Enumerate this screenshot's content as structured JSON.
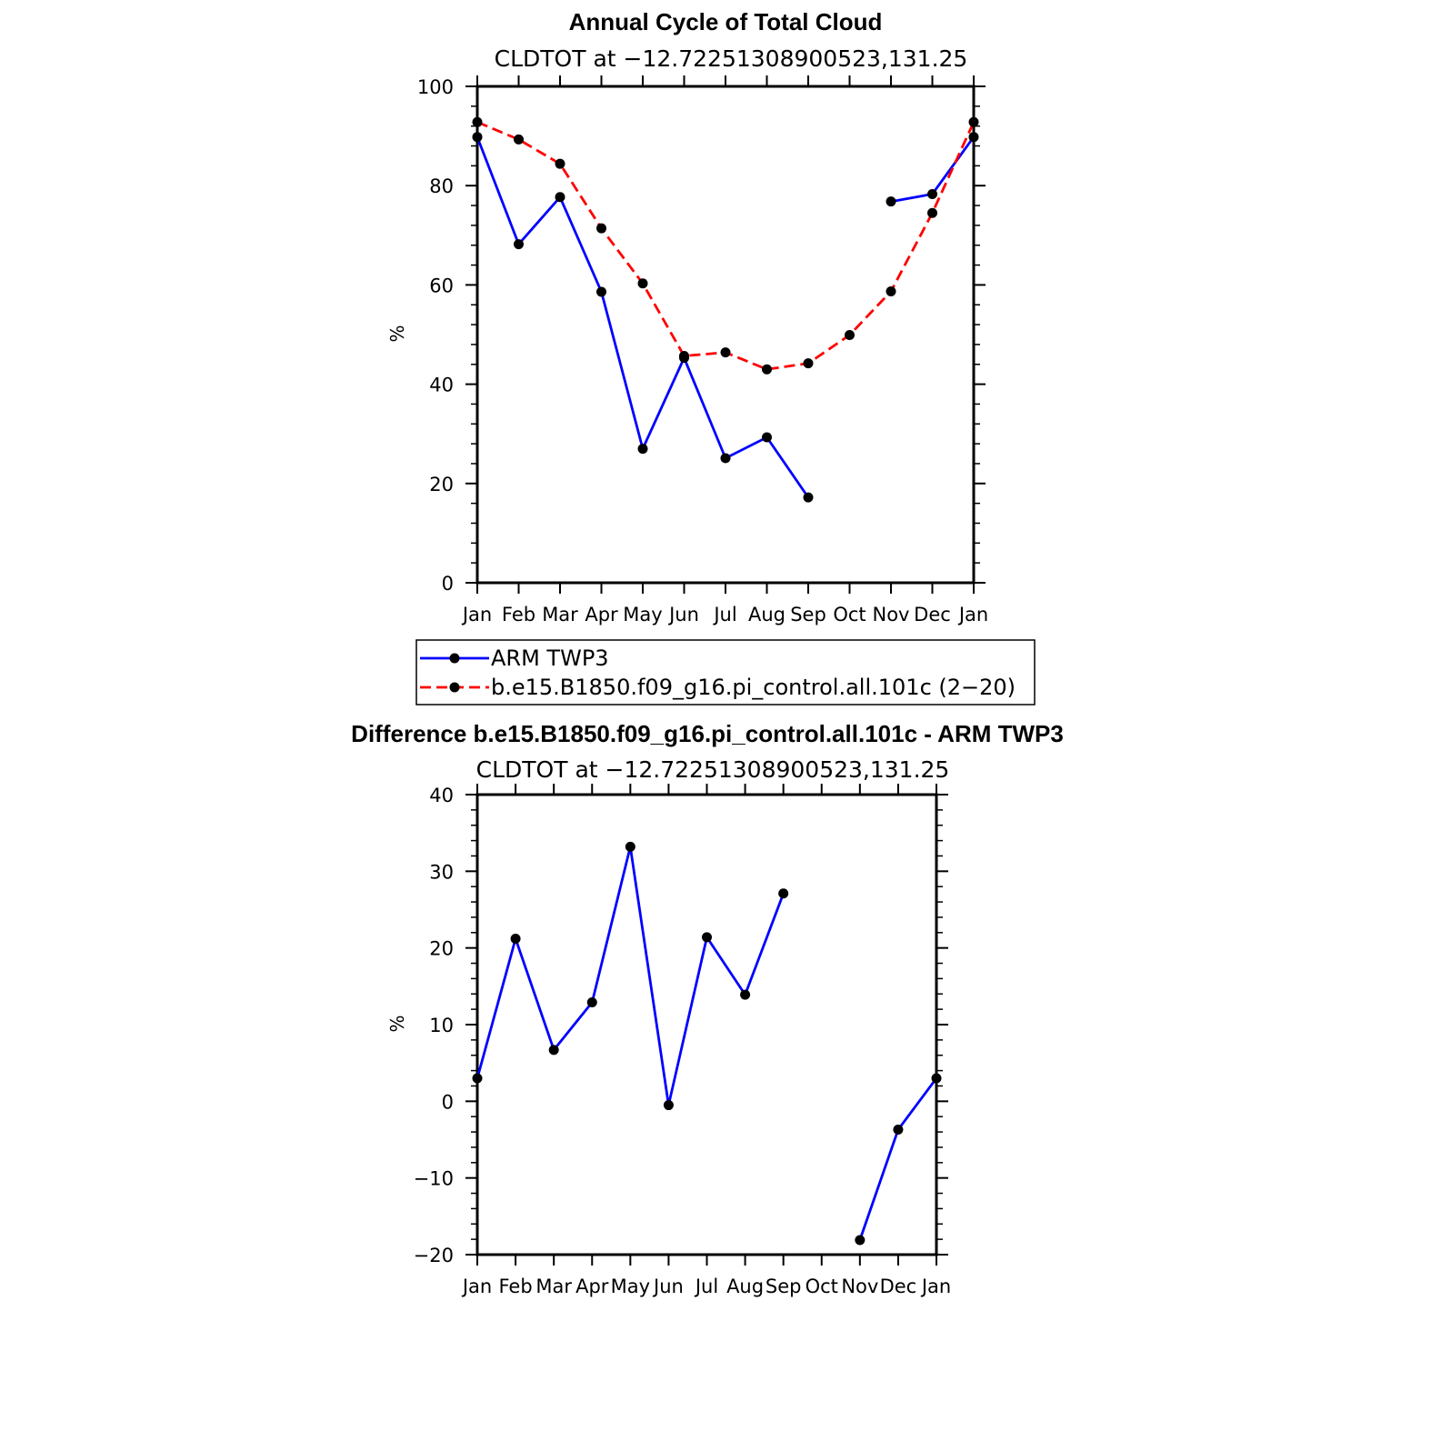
{
  "chart_data": [
    {
      "type": "line",
      "title": "Annual Cycle of Total Cloud",
      "subtitle": "CLDTOT at −12.72251308900523,131.25",
      "ylabel": "%",
      "ylim": [
        0,
        100
      ],
      "yticks": [
        "0",
        "20",
        "40",
        "60",
        "80",
        "100"
      ],
      "categories": [
        "Jan",
        "Feb",
        "Mar",
        "Apr",
        "May",
        "Jun",
        "Jul",
        "Aug",
        "Sep",
        "Oct",
        "Nov",
        "Dec",
        "Jan"
      ],
      "series": [
        {
          "name": "ARM TWP3",
          "color": "#0000ff",
          "dash": "solid",
          "values": [
            89.8,
            68.2,
            77.7,
            58.6,
            27.0,
            45.3,
            25.1,
            29.3,
            17.2,
            null,
            76.8,
            78.3,
            89.8
          ]
        },
        {
          "name": "b.e15.B1850.f09_g16.pi_control.all.101c (2−20)",
          "color": "#ff0000",
          "dash": "dashed",
          "values": [
            92.8,
            89.3,
            84.4,
            71.4,
            60.3,
            45.7,
            46.4,
            43.0,
            44.2,
            49.9,
            58.7,
            74.5,
            92.8
          ]
        }
      ],
      "legend": "below"
    },
    {
      "type": "line",
      "title": "Difference b.e15.B1850.f09_g16.pi_control.all.101c - ARM TWP3",
      "subtitle": "CLDTOT at −12.72251308900523,131.25",
      "ylabel": "%",
      "ylim": [
        -20,
        40
      ],
      "yticks": [
        "−20",
        "−10",
        "0",
        "10",
        "20",
        "30",
        "40"
      ],
      "categories": [
        "Jan",
        "Feb",
        "Mar",
        "Apr",
        "May",
        "Jun",
        "Jul",
        "Aug",
        "Sep",
        "Oct",
        "Nov",
        "Dec",
        "Jan"
      ],
      "series": [
        {
          "color": "#0000ff",
          "dash": "solid",
          "values": [
            3.0,
            21.2,
            6.7,
            12.9,
            33.2,
            -0.5,
            21.4,
            13.9,
            27.1,
            null,
            -18.1,
            -3.7,
            3.0
          ]
        }
      ]
    }
  ]
}
